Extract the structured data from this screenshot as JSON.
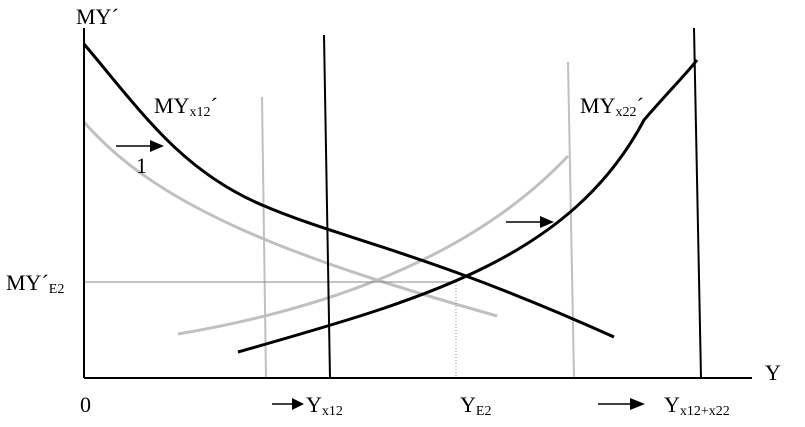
{
  "axes": {
    "y_label": "MY´",
    "x_label": "Y",
    "origin_label": "0"
  },
  "curves": {
    "mx12_label": {
      "main": "MY",
      "sub": "x12",
      "prime": "´"
    },
    "mx22_label": {
      "main": "MY",
      "sub": "x22",
      "prime": "´"
    }
  },
  "shift_label": "1",
  "equilibrium": {
    "y_axis_label": {
      "main": "MY´",
      "sub": "E2"
    },
    "x_axis_label": {
      "main": "Y",
      "sub": "E2"
    }
  },
  "x_markers": [
    {
      "main": "Y",
      "sub": "x12"
    },
    {
      "main": "Y",
      "sub": "x12+x22"
    }
  ],
  "colors": {
    "black_lines": "#000000",
    "gray_lines": "#c0c0c0"
  }
}
